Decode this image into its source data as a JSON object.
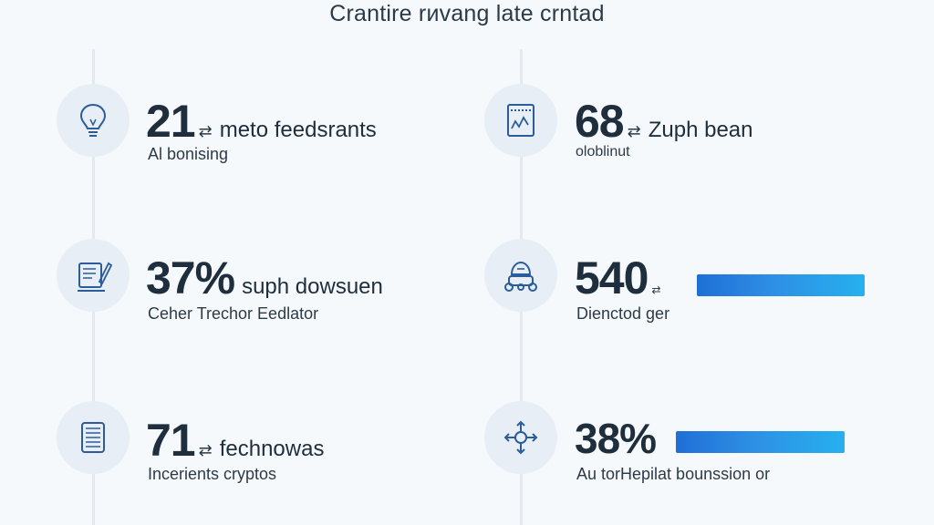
{
  "title": "Crantire rиvang late crntad",
  "stats": [
    {
      "icon": "lightbulb-icon",
      "value": "21",
      "tail": "meto feedsrants",
      "subtitle": "Al bonising"
    },
    {
      "icon": "chart-board-icon",
      "value": "68",
      "tail": "Zuph bean",
      "subtitle": "oloblinut"
    },
    {
      "icon": "document-pen-icon",
      "value": "37%",
      "tail": "suph dowsuen",
      "subtitle": "Ceher Trechor Eedlator"
    },
    {
      "icon": "robot-icon",
      "value": "540",
      "tail": "",
      "subtitle": "Dienctod ger",
      "bar_fraction": 1.0
    },
    {
      "icon": "document-list-icon",
      "value": "71",
      "tail": "fechnowas",
      "subtitle": "Incerients cryptos"
    },
    {
      "icon": "network-node-icon",
      "value": "38%",
      "tail": "",
      "subtitle": "Au torHepilat bounssion or",
      "bar_fraction": 1.0
    }
  ],
  "colors": {
    "accent": "#1f6fd6",
    "accent_light": "#26b0ef",
    "icon_stroke": "#2c5d9a",
    "circle_bg": "#e7eef5"
  }
}
